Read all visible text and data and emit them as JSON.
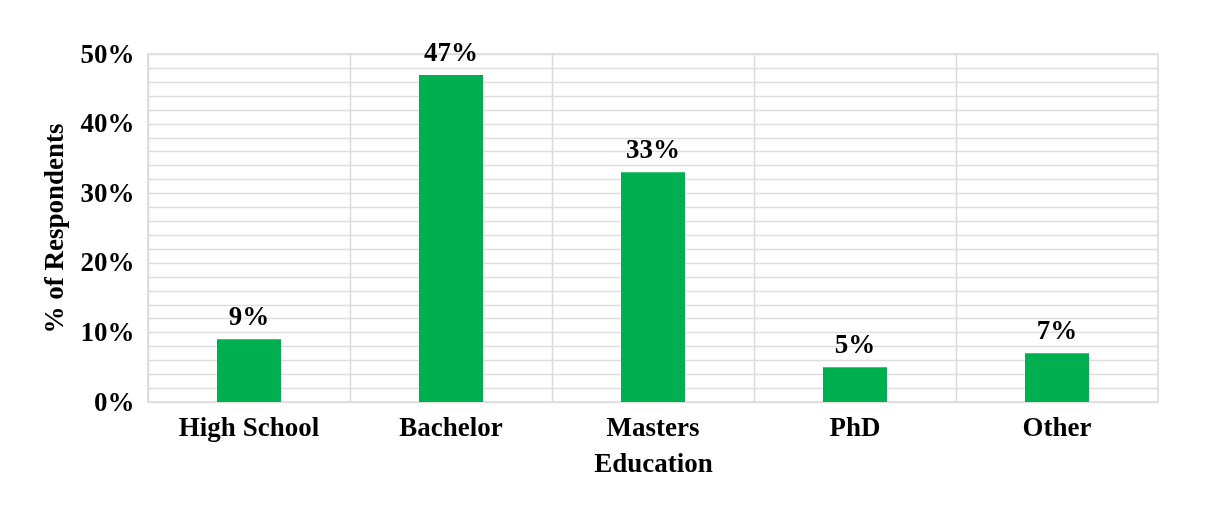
{
  "chart_data": {
    "type": "bar",
    "xlabel": "Education",
    "ylabel": "% of Respondents",
    "categories": [
      "High School",
      "Bachelor",
      "Masters",
      "PhD",
      "Other"
    ],
    "values": [
      9,
      47,
      33,
      5,
      7
    ],
    "value_labels": [
      "9%",
      "47%",
      "33%",
      "5%",
      "7%"
    ],
    "color": "#00b050",
    "ylim": [
      0,
      50
    ],
    "yticks": [
      {
        "value": 0,
        "label": "0%"
      },
      {
        "value": 2,
        "label": null
      },
      {
        "value": 4,
        "label": null
      },
      {
        "value": 6,
        "label": null
      },
      {
        "value": 8,
        "label": null
      },
      {
        "value": 10,
        "label": "10%"
      },
      {
        "value": 12,
        "label": null
      },
      {
        "value": 14,
        "label": null
      },
      {
        "value": 16,
        "label": null
      },
      {
        "value": 18,
        "label": null
      },
      {
        "value": 20,
        "label": "20%"
      },
      {
        "value": 22,
        "label": null
      },
      {
        "value": 24,
        "label": null
      },
      {
        "value": 26,
        "label": null
      },
      {
        "value": 28,
        "label": null
      },
      {
        "value": 30,
        "label": "30%"
      },
      {
        "value": 32,
        "label": null
      },
      {
        "value": 34,
        "label": null
      },
      {
        "value": 36,
        "label": null
      },
      {
        "value": 38,
        "label": null
      },
      {
        "value": 40,
        "label": "40%"
      },
      {
        "value": 42,
        "label": null
      },
      {
        "value": 44,
        "label": null
      },
      {
        "value": 46,
        "label": null
      },
      {
        "value": 48,
        "label": null
      },
      {
        "value": 50,
        "label": "50%"
      }
    ],
    "grid": true
  }
}
